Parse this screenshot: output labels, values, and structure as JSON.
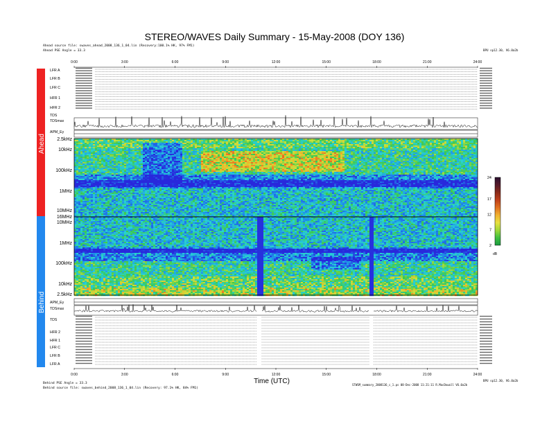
{
  "title": "STEREO/WAVES Daily Summary - 15-May-2008 (DOY 136)",
  "ahead": {
    "label": "Ahead",
    "source_line": "Ahead source file: swaves_ahead_2008_136_1_04.lin (Recovery:100.1% HK, 97% FM1)",
    "pse_angle": "Ahead PSE Angle = 33.3",
    "version": "BPU sp12.30, V6.0a2b",
    "color": "#ee2222"
  },
  "behind": {
    "label": "Behind",
    "source_line": "Behind source file: swaves_behind_2008_136_1_04.lin (Recovery: 97.1% HK, 84% FM1)",
    "pse_angle": "Behind PSE Angle = 33.3",
    "version": "BPU sp12.30, V6.0a2b",
    "credit": "STWSM_summary_2008136_c_1.ps  08-Dec-2008 11:21:11  R.MacDowall  V6.0a2b",
    "color": "#2288ee"
  },
  "time_axis": {
    "label": "Time (UTC)",
    "ticks": [
      "0:00",
      "3:00",
      "6:00",
      "9:00",
      "12:00",
      "15:00",
      "18:00",
      "21:00",
      "24:00"
    ]
  },
  "ahead_panels": [
    "LFR A",
    "LFR B",
    "LFR C",
    "HFR 1",
    "HFR 2",
    "TDS",
    "TDSmax",
    "APM_Ey"
  ],
  "behind_panels": [
    "APM_Ey",
    "TDSmax",
    "TDS",
    "HFR 2",
    "HFR 1",
    "LFR C",
    "LFR B",
    "LFR A"
  ],
  "ahead_freq_ticks": [
    "2.5kHz",
    "10kHz",
    "100kHz",
    "1MHz",
    "10MHz",
    "16MHz"
  ],
  "behind_freq_ticks": [
    "10MHz",
    "1MHz",
    "100kHz",
    "10kHz",
    "2.5kHz"
  ],
  "colorbar": {
    "ticks": [
      "24",
      "17",
      "12",
      "7",
      "2"
    ],
    "unit": "dB",
    "range": [
      2,
      24
    ],
    "colors": [
      "#2a1030",
      "#551a2a",
      "#8a2a1a",
      "#c0401a",
      "#e07020",
      "#f0b030",
      "#e8e040",
      "#a0d838",
      "#40c040",
      "#1a9a40"
    ]
  },
  "chart_data": {
    "type": "heatmap",
    "title": "STEREO/WAVES Daily Summary - 15-May-2008 (DOY 136)",
    "xlabel": "Time (UTC)",
    "x_range_hours": [
      0,
      24
    ],
    "x_ticks": [
      "0:00",
      "3:00",
      "6:00",
      "9:00",
      "12:00",
      "15:00",
      "18:00",
      "21:00",
      "24:00"
    ],
    "ahead_frequency_axis": [
      "2.5kHz",
      "10kHz",
      "100kHz",
      "1MHz",
      "10MHz",
      "16MHz"
    ],
    "behind_frequency_axis": [
      "10MHz",
      "1MHz",
      "100kHz",
      "10kHz",
      "2.5kHz"
    ],
    "colorbar_unit": "dB",
    "colorbar_range": [
      2,
      24
    ],
    "behind_data_gaps_hours": [
      [
        10.85,
        11.15
      ],
      [
        17.55,
        17.8
      ]
    ]
  }
}
